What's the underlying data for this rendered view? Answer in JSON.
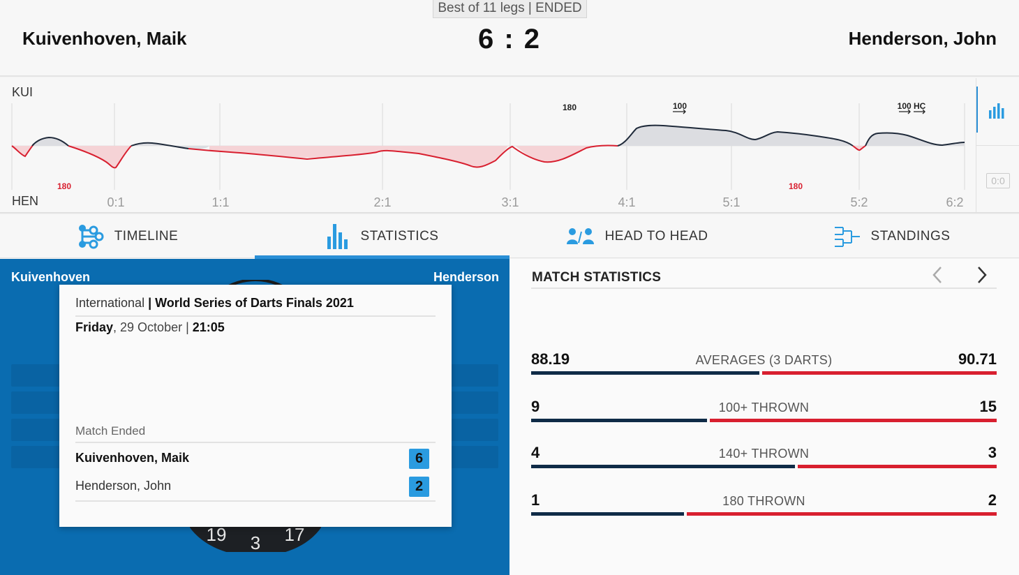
{
  "header": {
    "format": "Best of 11 legs | ENDED",
    "home_player": "Kuivenhoven, Maik",
    "away_player": "Henderson, John",
    "score": "6 : 2"
  },
  "timeline": {
    "home_code": "KUI",
    "away_code": "HEN",
    "leg_labels": [
      "0:1",
      "1:1",
      "2:1",
      "3:1",
      "4:1",
      "5:1",
      "5:2",
      "6:2"
    ],
    "home_markers": [
      "180",
      "100",
      "100 HC"
    ],
    "away_markers": [
      "180",
      "180"
    ],
    "side_score": "0:0",
    "colors": {
      "home_line": "#1f2a3a",
      "away_line": "#d81f2f",
      "home_fill": "#dcdde1",
      "away_fill": "#f5d3d6"
    }
  },
  "tabs": [
    {
      "label": "TIMELINE",
      "icon": "timeline-icon"
    },
    {
      "label": "STATISTICS",
      "icon": "bar-chart-icon"
    },
    {
      "label": "HEAD TO HEAD",
      "icon": "users-icon"
    },
    {
      "label": "STANDINGS",
      "icon": "bracket-icon"
    }
  ],
  "active_tab": "STATISTICS",
  "board_panel": {
    "home": "Kuivenhoven",
    "away": "Henderson",
    "board_numbers": [
      "19",
      "3",
      "17"
    ]
  },
  "match_popup": {
    "category": "International",
    "separator": " | ",
    "tournament": "World Series of Darts Finals 2021",
    "day": "Friday",
    "date": ", 29 October | ",
    "time": "21:05",
    "status": "Match Ended",
    "players": [
      {
        "name": "Kuivenhoven, Maik",
        "score": "6",
        "winner": true
      },
      {
        "name": "Henderson, John",
        "score": "2",
        "winner": false
      }
    ]
  },
  "match_statistics": {
    "title": "MATCH STATISTICS",
    "stats": [
      {
        "label": "AVERAGES (3 DARTS)",
        "home": "88.19",
        "away": "90.71",
        "home_share": 0.493
      },
      {
        "label": "100+ THROWN",
        "home": "9",
        "away": "15",
        "home_share": 0.38
      },
      {
        "label": "140+ THROWN",
        "home": "4",
        "away": "3",
        "home_share": 0.57
      },
      {
        "label": "180 THROWN",
        "home": "1",
        "away": "2",
        "home_share": 0.33
      }
    ],
    "colors": {
      "home": "#0f2b47",
      "away": "#d81f2f"
    }
  }
}
